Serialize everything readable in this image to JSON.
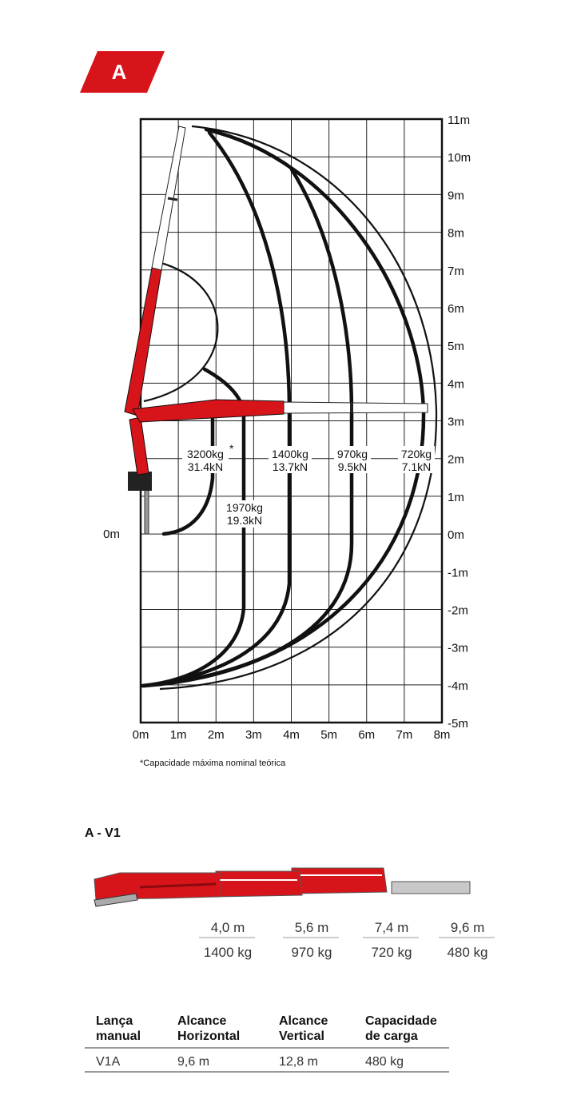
{
  "badge": "A",
  "chart": {
    "y_labels": [
      "11m",
      "10m",
      "9m",
      "8m",
      "7m",
      "6m",
      "5m",
      "4m",
      "3m",
      "2m",
      "1m",
      "0m",
      "-1m",
      "-2m",
      "-3m",
      "-4m",
      "-5m"
    ],
    "x_labels": [
      "0m",
      "1m",
      "2m",
      "3m",
      "4m",
      "5m",
      "6m",
      "7m",
      "8m"
    ],
    "left_label": "0m",
    "loads": [
      {
        "mass": "3200kg",
        "force": "31.4kN",
        "mark": "*"
      },
      {
        "mass": "1970kg",
        "force": "19.3kN"
      },
      {
        "mass": "1400kg",
        "force": "13.7kN"
      },
      {
        "mass": "970kg",
        "force": "9.5kN"
      },
      {
        "mass": "720kg",
        "force": "7.1kN"
      }
    ],
    "footnote": "*Capacidade máxima nominal teórica"
  },
  "section_title": "A - V1",
  "reach": [
    {
      "distance": "4,0 m",
      "capacity": "1400 kg"
    },
    {
      "distance": "5,6 m",
      "capacity": "970 kg"
    },
    {
      "distance": "7,4 m",
      "capacity": "720 kg"
    },
    {
      "distance": "9,6 m",
      "capacity": "480 kg"
    }
  ],
  "table": {
    "headers": [
      [
        "Lança",
        "manual"
      ],
      [
        "Alcance",
        "Horizontal"
      ],
      [
        "Alcance",
        "Vertical"
      ],
      [
        "Capacidade",
        "de carga"
      ]
    ],
    "rows": [
      [
        "V1A",
        "9,6 m",
        "12,8 m",
        "480 kg"
      ]
    ]
  }
}
